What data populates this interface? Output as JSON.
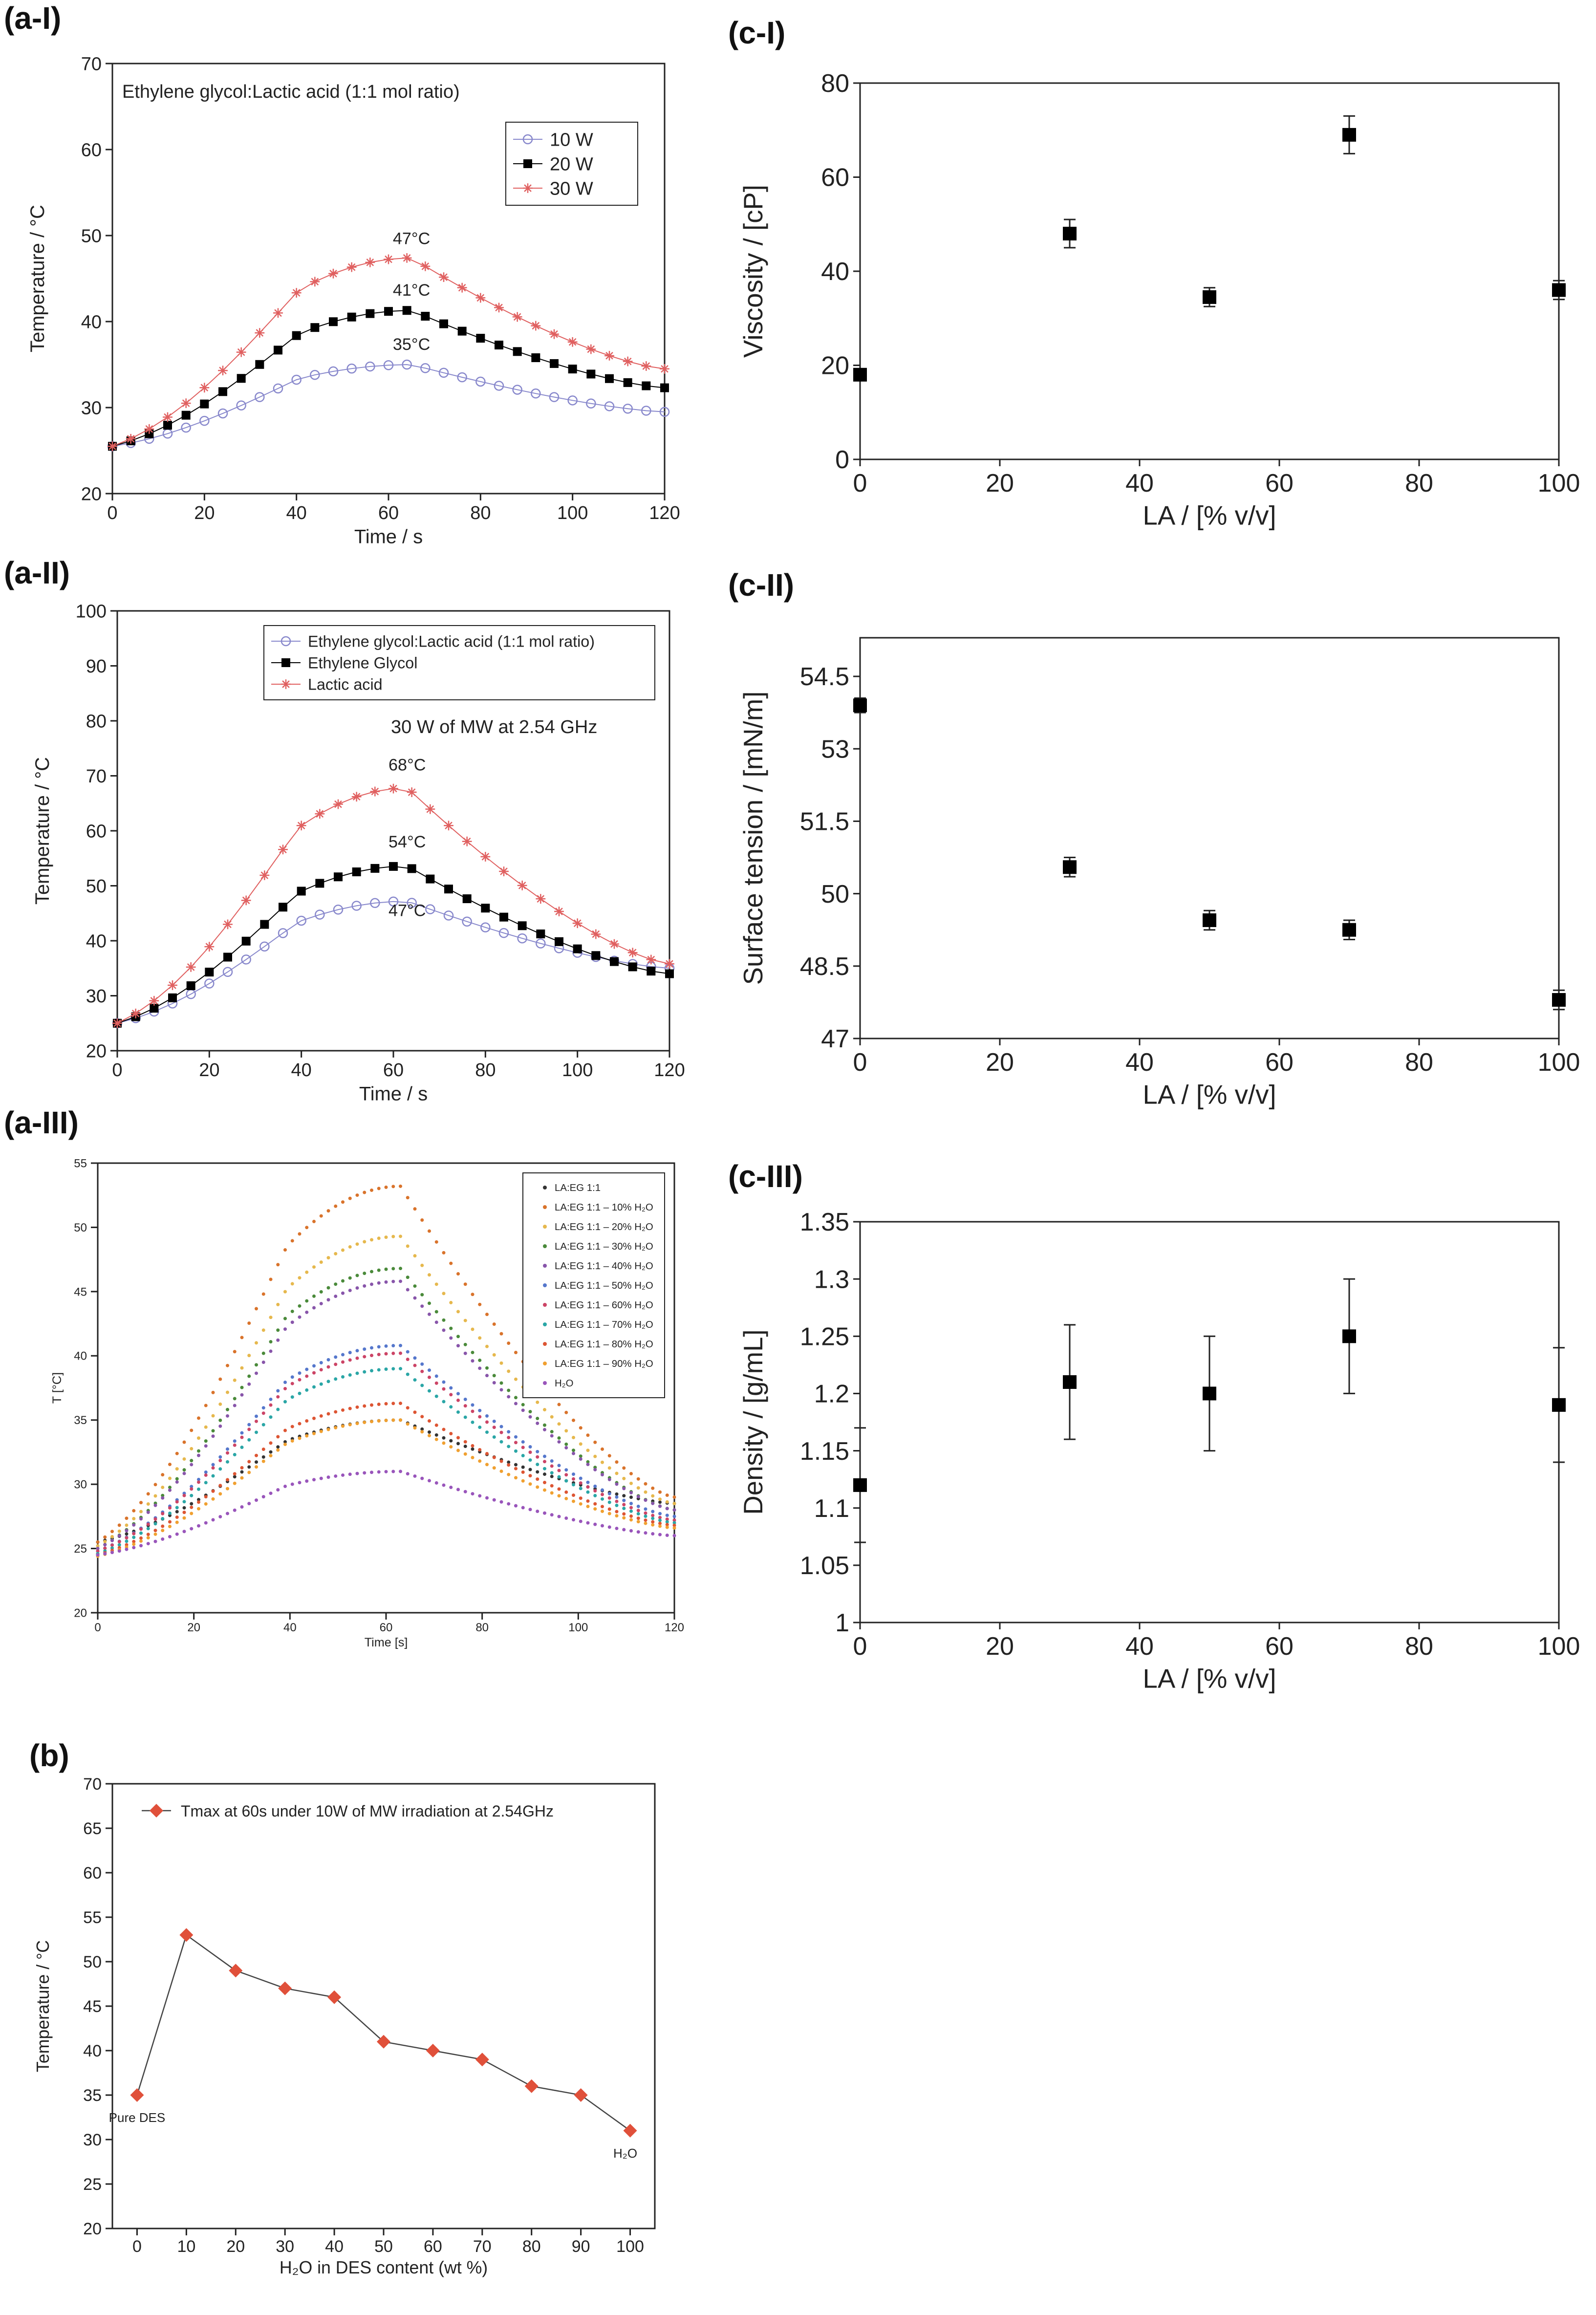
{
  "panels": {
    "a1": "(a-I)",
    "a2": "(a-II)",
    "a3": "(a-III)",
    "b": "(b)",
    "c1": "(c-I)",
    "c2": "(c-II)",
    "c3": "(c-III)"
  },
  "chart_data": [
    {
      "id": "a1",
      "type": "scatter",
      "marker_line": true,
      "title": "Ethylene glycol:Lactic acid (1:1 mol ratio)",
      "xlabel": "Time / s",
      "ylabel": "Temperature / °C",
      "xlim": [
        0,
        120
      ],
      "ylim": [
        20,
        70
      ],
      "xticks": [
        0,
        20,
        40,
        60,
        80,
        100,
        120
      ],
      "yticks": [
        20,
        30,
        40,
        50,
        60,
        70
      ],
      "legend_position": "top-right",
      "peak_time": 65,
      "step": 4,
      "series": [
        {
          "name": "10 W",
          "start": 25.5,
          "peak": 35,
          "end": 29.5,
          "marker": "open-circle",
          "color": "#8888cc"
        },
        {
          "name": "20 W",
          "start": 25.5,
          "peak": 41.3,
          "end": 32.3,
          "marker": "square",
          "color": "#000000"
        },
        {
          "name": "30 W",
          "start": 25.5,
          "peak": 47.4,
          "end": 34.5,
          "marker": "star",
          "color": "#e06060"
        }
      ],
      "annotations": [
        {
          "text": "47°C",
          "x": 65,
          "y": 49
        },
        {
          "text": "41°C",
          "x": 65,
          "y": 43
        },
        {
          "text": "35°C",
          "x": 65,
          "y": 36.7
        }
      ]
    },
    {
      "id": "a2",
      "type": "scatter",
      "marker_line": true,
      "title": "",
      "xlabel": "Time / s",
      "ylabel": "Temperature / °C",
      "xlim": [
        0,
        120
      ],
      "ylim": [
        20,
        100
      ],
      "xticks": [
        0,
        20,
        40,
        60,
        80,
        100,
        120
      ],
      "yticks": [
        20,
        30,
        40,
        50,
        60,
        70,
        80,
        90,
        100
      ],
      "legend_position": "top-right",
      "note": "30 W of MW at 2.54 GHz",
      "peak_time": 63,
      "step": 4,
      "series": [
        {
          "name": "Ethylene glycol:Lactic acid (1:1 mol ratio)",
          "start": 25,
          "peak": 47.2,
          "end": 35,
          "marker": "open-circle",
          "color": "#8888cc"
        },
        {
          "name": "Ethylene Glycol",
          "start": 25,
          "peak": 53.6,
          "end": 34,
          "marker": "square",
          "color": "#000000"
        },
        {
          "name": "Lactic acid",
          "start": 25,
          "peak": 67.8,
          "end": 35.8,
          "marker": "star",
          "color": "#e06060"
        }
      ],
      "annotations": [
        {
          "text": "68°C",
          "x": 63,
          "y": 71
        },
        {
          "text": "54°C",
          "x": 63,
          "y": 57
        },
        {
          "text": "47°C",
          "x": 63,
          "y": 44.5
        }
      ]
    },
    {
      "id": "a3",
      "type": "scatter",
      "marker_line": false,
      "title": "",
      "xlabel": "Time [s]",
      "ylabel": "T [°C]",
      "xlim": [
        0,
        120
      ],
      "ylim": [
        20,
        55
      ],
      "xticks": [
        0,
        20,
        40,
        60,
        80,
        100,
        120
      ],
      "yticks": [
        20,
        25,
        30,
        35,
        40,
        45,
        50,
        55
      ],
      "legend_position": "top-right",
      "peak_time": 63,
      "step": 1.5,
      "series": [
        {
          "name": "LA:EG 1:1",
          "start": 25.5,
          "peak": 35,
          "end": 28.5,
          "marker": "dot",
          "color": "#333333"
        },
        {
          "name": "LA:EG 1:1 – 10% H₂O",
          "start": 25.5,
          "peak": 53.2,
          "end": 29,
          "marker": "dot",
          "color": "#d9732b"
        },
        {
          "name": "LA:EG 1:1 – 20% H₂O",
          "start": 25.2,
          "peak": 49.3,
          "end": 28.5,
          "marker": "dot",
          "color": "#e6b84d"
        },
        {
          "name": "LA:EG 1:1 – 30% H₂O",
          "start": 25,
          "peak": 46.8,
          "end": 28,
          "marker": "dot",
          "color": "#4a8a3a"
        },
        {
          "name": "LA:EG 1:1 – 40% H₂O",
          "start": 25,
          "peak": 45.8,
          "end": 28,
          "marker": "dot",
          "color": "#8855aa"
        },
        {
          "name": "LA:EG 1:1 – 50% H₂O",
          "start": 24.8,
          "peak": 40.8,
          "end": 27.5,
          "marker": "dot",
          "color": "#5577cc"
        },
        {
          "name": "LA:EG 1:1 – 60% H₂O",
          "start": 24.8,
          "peak": 40.2,
          "end": 27.2,
          "marker": "dot",
          "color": "#cc4466"
        },
        {
          "name": "LA:EG 1:1 – 70% H₂O",
          "start": 24.6,
          "peak": 39,
          "end": 27,
          "marker": "dot",
          "color": "#2aa6a6"
        },
        {
          "name": "LA:EG 1:1 – 80% H₂O",
          "start": 24.5,
          "peak": 36.3,
          "end": 26.8,
          "marker": "dot",
          "color": "#dd5533"
        },
        {
          "name": "LA:EG 1:1 – 90% H₂O",
          "start": 24.4,
          "peak": 35,
          "end": 26.6,
          "marker": "dot",
          "color": "#f0a030"
        },
        {
          "name": "H₂O",
          "start": 24.5,
          "peak": 31,
          "end": 26,
          "marker": "dot",
          "color": "#9955bb"
        }
      ]
    },
    {
      "id": "b",
      "type": "line",
      "xlabel": "H₂O in DES content (wt %)",
      "ylabel": "Temperature / °C",
      "xlim": [
        -5,
        105
      ],
      "ylim": [
        20,
        70
      ],
      "xticks": [
        0,
        10,
        20,
        30,
        40,
        50,
        60,
        70,
        80,
        90,
        100
      ],
      "yticks": [
        20,
        25,
        30,
        35,
        40,
        45,
        50,
        55,
        60,
        65,
        70
      ],
      "legend_position": "top-left",
      "legend": "Tmax at 60s under 10W of MW irradiation at 2.54GHz",
      "x": [
        0,
        10,
        20,
        30,
        40,
        50,
        60,
        70,
        80,
        90,
        100
      ],
      "values": [
        35,
        53,
        49,
        47,
        46,
        41,
        40,
        39,
        36,
        35,
        31
      ],
      "color": "#e0503a",
      "annotations": [
        {
          "text": "Pure DES",
          "x": 0,
          "y": 35
        },
        {
          "text": "H₂O",
          "x": 100,
          "y": 31
        }
      ]
    },
    {
      "id": "c1",
      "type": "scatter",
      "errorbars": true,
      "xlabel": "LA / [% v/v]",
      "ylabel": "Viscosity / [cP]",
      "xlim": [
        0,
        100
      ],
      "ylim": [
        0,
        80
      ],
      "xticks": [
        0,
        20,
        40,
        60,
        80,
        100
      ],
      "yticks": [
        0,
        20,
        40,
        60,
        80
      ],
      "ytick_labels": [
        "0",
        "20",
        "40",
        "60",
        "80"
      ],
      "x": [
        0,
        30,
        50,
        70,
        100
      ],
      "values": [
        18,
        48,
        34.5,
        69,
        36
      ],
      "errors": [
        1,
        3,
        2,
        4,
        2
      ]
    },
    {
      "id": "c2",
      "type": "scatter",
      "errorbars": true,
      "xlabel": "LA / [% v/v]",
      "ylabel": "Surface tension / [mN/m]",
      "xlim": [
        0,
        100
      ],
      "ylim": [
        47,
        55.3
      ],
      "xticks": [
        0,
        20,
        40,
        60,
        80,
        100
      ],
      "yticks": [
        47,
        48.5,
        50,
        51.5,
        53,
        54.5
      ],
      "ytick_labels": [
        "47",
        "48.5",
        "50",
        "51.5",
        "53",
        "54.5"
      ],
      "x": [
        0,
        30,
        50,
        70,
        100
      ],
      "values": [
        53.9,
        50.55,
        49.45,
        49.25,
        47.8
      ],
      "errors": [
        0.15,
        0.2,
        0.2,
        0.2,
        0.2
      ]
    },
    {
      "id": "c3",
      "type": "scatter",
      "errorbars": true,
      "xlabel": "LA / [% v/v]",
      "ylabel": "Density / [g/mL]",
      "xlim": [
        0,
        100
      ],
      "ylim": [
        1,
        1.35
      ],
      "xticks": [
        0,
        20,
        40,
        60,
        80,
        100
      ],
      "yticks": [
        1,
        1.05,
        1.1,
        1.15,
        1.2,
        1.25,
        1.3,
        1.35
      ],
      "ytick_labels": [
        "1",
        "1.05",
        "1.1",
        "1.15",
        "1.2",
        "1.25",
        "1.3",
        "1.35"
      ],
      "x": [
        0,
        30,
        50,
        70,
        100
      ],
      "values": [
        1.12,
        1.21,
        1.2,
        1.25,
        1.19
      ],
      "errors": [
        0.05,
        0.05,
        0.05,
        0.05,
        0.05
      ]
    }
  ]
}
